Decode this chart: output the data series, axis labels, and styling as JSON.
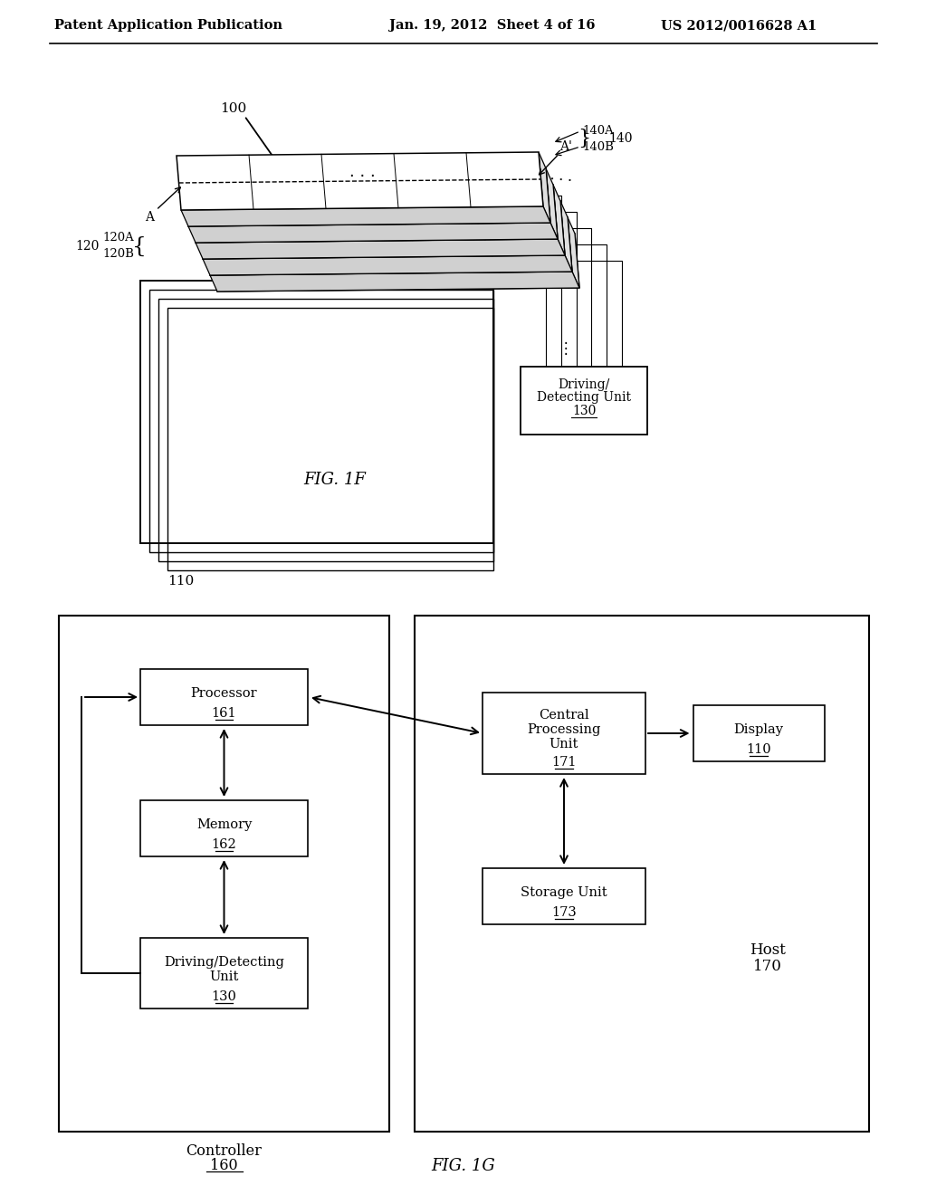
{
  "bg_color": "#ffffff",
  "header_left": "Patent Application Publication",
  "header_center": "Jan. 19, 2012  Sheet 4 of 16",
  "header_right": "US 2012/0016628 A1",
  "fig1f_label": "FIG. 1F",
  "fig1g_label": "FIG. 1G",
  "line_color": "#000000"
}
